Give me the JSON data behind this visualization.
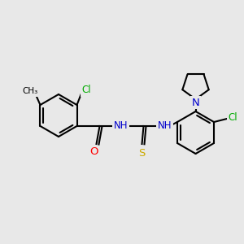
{
  "background_color": "#e8e8e8",
  "bond_color": "#000000",
  "bond_width": 1.5,
  "atom_colors": {
    "C": "#000000",
    "N": "#0000cd",
    "O": "#ff0000",
    "S": "#ccaa00",
    "Cl": "#00aa00",
    "H": "#606060"
  },
  "font_size": 8.5,
  "figsize": [
    3.0,
    3.0
  ],
  "dpi": 100,
  "xlim": [
    0,
    300
  ],
  "ylim": [
    0,
    300
  ]
}
